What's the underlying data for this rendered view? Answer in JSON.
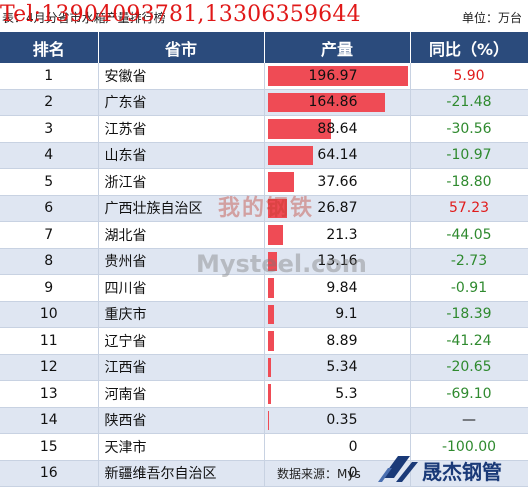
{
  "caption": "表：4月分省市水箱产量排行榜",
  "overlay_contact": "Tel:13904093781,13306359644",
  "unit": "单位：万台",
  "columns": [
    "排名",
    "省市",
    "产量",
    "同比（%）"
  ],
  "rows": [
    {
      "rank": "1",
      "province": "安徽省",
      "production": "196.97",
      "production_value": 196.97,
      "yoy": "5.90",
      "sign": "pos"
    },
    {
      "rank": "2",
      "province": "广东省",
      "production": "164.86",
      "production_value": 164.86,
      "yoy": "-21.48",
      "sign": "neg"
    },
    {
      "rank": "3",
      "province": "江苏省",
      "production": "88.64",
      "production_value": 88.64,
      "yoy": "-30.56",
      "sign": "neg"
    },
    {
      "rank": "4",
      "province": "山东省",
      "production": "64.14",
      "production_value": 64.14,
      "yoy": "-10.97",
      "sign": "neg"
    },
    {
      "rank": "5",
      "province": "浙江省",
      "production": "37.66",
      "production_value": 37.66,
      "yoy": "-18.80",
      "sign": "neg"
    },
    {
      "rank": "6",
      "province": "广西壮族自治区",
      "production": "26.87",
      "production_value": 26.87,
      "yoy": "57.23",
      "sign": "pos"
    },
    {
      "rank": "7",
      "province": "湖北省",
      "production": "21.3",
      "production_value": 21.3,
      "yoy": "-44.05",
      "sign": "neg"
    },
    {
      "rank": "8",
      "province": "贵州省",
      "production": "13.16",
      "production_value": 13.16,
      "yoy": "-2.73",
      "sign": "neg"
    },
    {
      "rank": "9",
      "province": "四川省",
      "production": "9.84",
      "production_value": 9.84,
      "yoy": "-0.91",
      "sign": "neg"
    },
    {
      "rank": "10",
      "province": "重庆市",
      "production": "9.1",
      "production_value": 9.1,
      "yoy": "-18.39",
      "sign": "neg"
    },
    {
      "rank": "11",
      "province": "辽宁省",
      "production": "8.89",
      "production_value": 8.89,
      "yoy": "-41.24",
      "sign": "neg"
    },
    {
      "rank": "12",
      "province": "江西省",
      "production": "5.34",
      "production_value": 5.34,
      "yoy": "-20.65",
      "sign": "neg"
    },
    {
      "rank": "13",
      "province": "河南省",
      "production": "5.3",
      "production_value": 5.3,
      "yoy": "-69.10",
      "sign": "neg"
    },
    {
      "rank": "14",
      "province": "陕西省",
      "production": "0.35",
      "production_value": 0.35,
      "yoy": "—",
      "sign": "none"
    },
    {
      "rank": "15",
      "province": "天津市",
      "production": "0",
      "production_value": 0,
      "yoy": "-100.00",
      "sign": "neg"
    },
    {
      "rank": "16",
      "province": "新疆维吾尔自治区",
      "production": "0",
      "production_value": 0,
      "yoy": "",
      "sign": "none"
    }
  ],
  "source": "数据来源：Mys",
  "logo_text": "晟杰钢管",
  "watermark_cn": "我的钢铁",
  "watermark_en": "Mysteel.com",
  "colors": {
    "header_bg": "#2b4b7c",
    "bar": "#ef4b55",
    "positive": "#e01c1c",
    "negative": "#2f8a2f",
    "alt_row": "#dfe6f2"
  }
}
